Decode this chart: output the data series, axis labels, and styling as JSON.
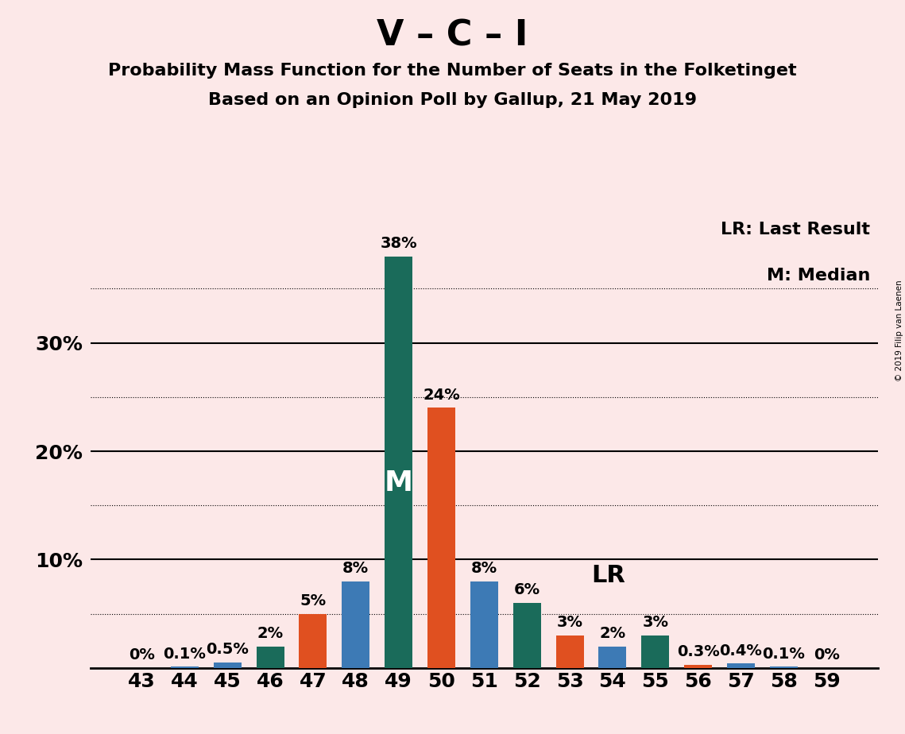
{
  "title": "V – C – I",
  "subtitle1": "Probability Mass Function for the Number of Seats in the Folketinget",
  "subtitle2": "Based on an Opinion Poll by Gallup, 21 May 2019",
  "copyright": "© 2019 Filip van Laenen",
  "seats": [
    43,
    44,
    45,
    46,
    47,
    48,
    49,
    50,
    51,
    52,
    53,
    54,
    55,
    56,
    57,
    58,
    59
  ],
  "values": [
    0.0,
    0.1,
    0.5,
    2.0,
    5.0,
    8.0,
    38.0,
    24.0,
    8.0,
    6.0,
    3.0,
    2.0,
    3.0,
    0.3,
    0.4,
    0.1,
    0.0
  ],
  "colors": [
    "#3d7ab5",
    "#3d7ab5",
    "#3d7ab5",
    "#1a6b5a",
    "#e05020",
    "#3d7ab5",
    "#1a6b5a",
    "#e05020",
    "#3d7ab5",
    "#1a6b5a",
    "#e05020",
    "#3d7ab5",
    "#1a6b5a",
    "#e05020",
    "#3d7ab5",
    "#3d7ab5",
    "#3d7ab5"
  ],
  "median_seat": 49,
  "last_result_seat": 50,
  "lr_label_seat": 53,
  "background_color": "#fce8e8",
  "ylim_max": 42,
  "major_yticks": [
    10,
    20,
    30
  ],
  "dotted_yticks": [
    5,
    15,
    25,
    35
  ],
  "bar_width": 0.65,
  "legend_lr": "LR: Last Result",
  "legend_m": "M: Median",
  "title_fontsize": 32,
  "subtitle_fontsize": 16,
  "tick_fontsize": 18,
  "annot_fontsize": 14,
  "median_label_fontsize": 26,
  "lr_label_fontsize": 22,
  "legend_fontsize": 16
}
